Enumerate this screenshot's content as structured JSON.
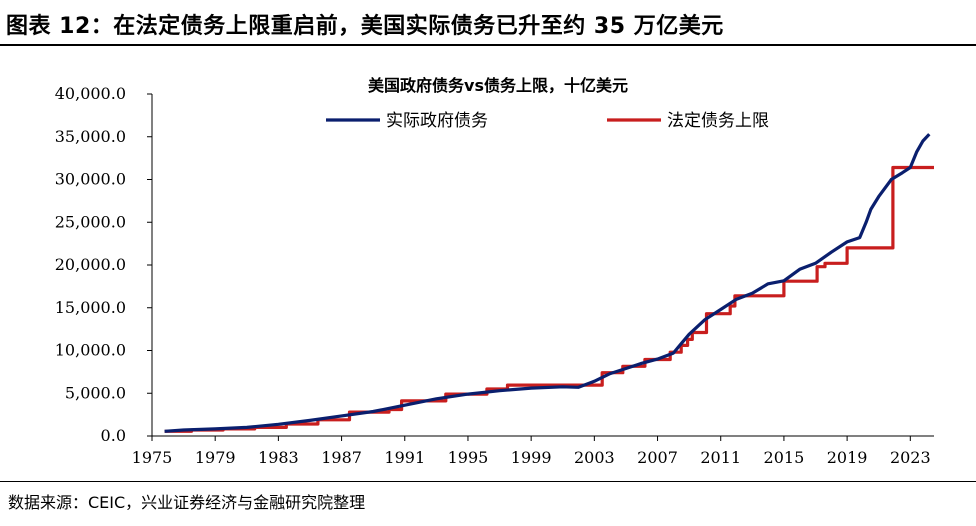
{
  "figure": {
    "title": "图表 12：在法定债务上限重启前，美国实际债务已升至约 35 万亿美元",
    "source": "数据来源：CEIC，兴业证券经济与金融研究院整理"
  },
  "colors": {
    "actual": "#0a1f6e",
    "limit": "#c81e1e",
    "axis": "#000000"
  },
  "chart_data": {
    "type": "line",
    "title": "美国政府债务vs债务上限，十亿美元",
    "xlabel": "",
    "ylabel": "",
    "xlim": [
      1975,
      2024.5
    ],
    "ylim": [
      0,
      40000
    ],
    "xticks": [
      1975,
      1979,
      1983,
      1987,
      1991,
      1995,
      1999,
      2003,
      2007,
      2011,
      2015,
      2019,
      2023
    ],
    "yticks": [
      0,
      5000,
      10000,
      15000,
      20000,
      25000,
      30000,
      35000,
      40000
    ],
    "ytick_labels": [
      "0.0",
      "5,000.0",
      "10,000.0",
      "15,000.0",
      "20,000.0",
      "25,000.0",
      "30,000.0",
      "35,000.0",
      "40,000.0"
    ],
    "legend_position": "top",
    "series": [
      {
        "name": "实际政府债务",
        "step": false,
        "x": [
          1975.8,
          1977,
          1979,
          1981,
          1983,
          1985,
          1987,
          1989,
          1991,
          1993,
          1995,
          1997,
          1999,
          2001,
          2002,
          2003,
          2004,
          2005,
          2006,
          2007,
          2008,
          2008.5,
          2009,
          2010,
          2011,
          2012,
          2013,
          2014,
          2015,
          2016,
          2017,
          2018,
          2019,
          2019.8,
          2020.2,
          2020.5,
          2021,
          2021.8,
          2022.5,
          2023,
          2023.4,
          2023.8,
          2024.2
        ],
        "y": [
          550,
          700,
          830,
          1000,
          1370,
          1820,
          2350,
          2870,
          3600,
          4350,
          4900,
          5300,
          5600,
          5750,
          5700,
          6400,
          7300,
          7900,
          8500,
          9000,
          9700,
          10800,
          11900,
          13600,
          14800,
          16000,
          16700,
          17800,
          18150,
          19500,
          20200,
          21500,
          22700,
          23200,
          25000,
          26500,
          28000,
          30000,
          30800,
          31400,
          33200,
          34500,
          35300
        ]
      },
      {
        "name": "法定债务上限",
        "step": true,
        "x": [
          1975.8,
          1977.5,
          1979.5,
          1981.5,
          1983.5,
          1985.5,
          1987.5,
          1990.0,
          1990.8,
          1993.6,
          1996.2,
          1997.5,
          2002.5,
          2003.5,
          2004.8,
          2006.2,
          2007.8,
          2008.5,
          2008.9,
          2009.2,
          2010.1,
          2011.6,
          2011.9,
          2015.0,
          2017.1,
          2017.6,
          2019.0,
          2021.6,
          2021.9,
          2024.5
        ],
        "y": [
          550,
          700,
          830,
          1000,
          1400,
          1900,
          2800,
          3100,
          4100,
          4900,
          5500,
          5950,
          5950,
          7400,
          8150,
          8950,
          9800,
          10600,
          11300,
          12100,
          14300,
          15200,
          16400,
          18100,
          19800,
          20200,
          22000,
          22000,
          31400,
          31400
        ]
      }
    ]
  }
}
